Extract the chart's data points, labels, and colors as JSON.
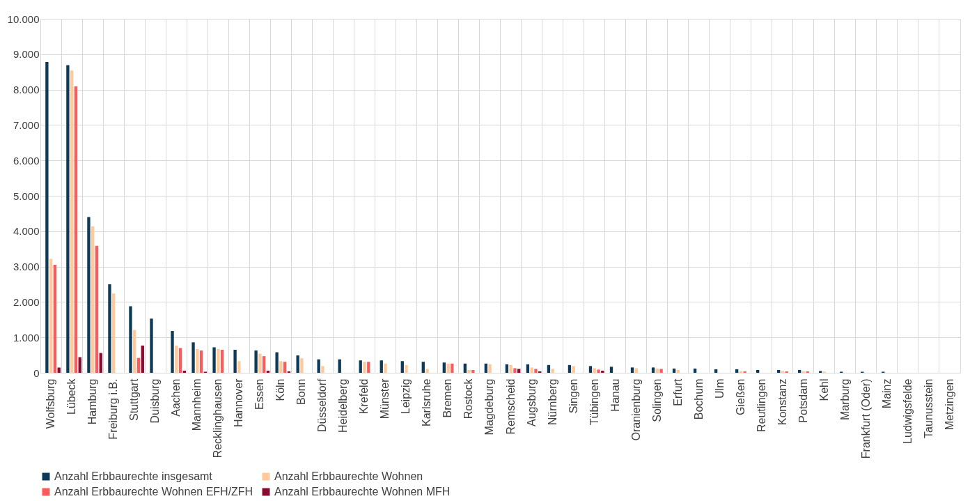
{
  "chart_data": {
    "type": "bar",
    "categories": [
      "Wolfsburg",
      "Lübeck",
      "Hamburg",
      "Freiburg i.B.",
      "Stuttgart",
      "Duisburg",
      "Aachen",
      "Mannheim",
      "Recklinghausen",
      "Hannover",
      "Essen",
      "Köln",
      "Bonn",
      "Düsseldorf",
      "Heidelberg",
      "Krefeld",
      "Münster",
      "Leipzig",
      "Karlsruhe",
      "Bremen",
      "Rostock",
      "Magdeburg",
      "Remscheid",
      "Augsburg",
      "Nürnberg",
      "Singen",
      "Tübingen",
      "Hanau",
      "Oranienburg",
      "Solingen",
      "Erfurt",
      "Bochum",
      "Ulm",
      "Gießen",
      "Reutlingen",
      "Konstanz",
      "Potsdam",
      "Kehl",
      "Marburg",
      "Frankfurt (Oder)",
      "Mainz",
      "Ludwigsfelde",
      "Taunusstein",
      "Metzingen"
    ],
    "series": [
      {
        "name": "Anzahl Erbbaurechte insgesamt",
        "color": "#0e3a5a",
        "values": [
          8780,
          8690,
          4400,
          2500,
          1880,
          1530,
          1180,
          860,
          720,
          650,
          630,
          580,
          490,
          380,
          380,
          350,
          350,
          330,
          310,
          290,
          260,
          260,
          240,
          240,
          220,
          220,
          190,
          170,
          150,
          150,
          120,
          120,
          100,
          100,
          80,
          80,
          80,
          50,
          30,
          30,
          30,
          null,
          null,
          null
        ]
      },
      {
        "name": "Anzahl Erbbaurechte Wohnen",
        "color": "#ffc99a",
        "values": [
          3220,
          8540,
          4140,
          2240,
          1210,
          null,
          770,
          670,
          670,
          330,
          540,
          330,
          410,
          190,
          null,
          310,
          260,
          220,
          110,
          260,
          80,
          240,
          220,
          150,
          110,
          190,
          130,
          null,
          130,
          120,
          80,
          null,
          null,
          50,
          null,
          50,
          40,
          30,
          null,
          null,
          null,
          null,
          null,
          null
        ]
      },
      {
        "name": "Anzahl Erbbaurechte Wohnen EFH/ZFH",
        "color": "#ff5a5a",
        "values": [
          3050,
          8090,
          3590,
          null,
          420,
          null,
          700,
          630,
          650,
          null,
          470,
          310,
          null,
          null,
          null,
          310,
          null,
          null,
          null,
          260,
          80,
          null,
          130,
          110,
          null,
          null,
          90,
          null,
          null,
          110,
          null,
          null,
          null,
          40,
          null,
          40,
          40,
          null,
          null,
          null,
          null,
          null,
          null,
          null
        ]
      },
      {
        "name": "Anzahl Erbbaurechte Wohnen MFH",
        "color": "#8b0a30",
        "values": [
          150,
          440,
          560,
          null,
          770,
          null,
          60,
          30,
          null,
          null,
          60,
          40,
          null,
          null,
          null,
          null,
          null,
          null,
          null,
          null,
          null,
          null,
          110,
          40,
          null,
          null,
          60,
          null,
          null,
          null,
          null,
          null,
          null,
          null,
          null,
          null,
          null,
          null,
          null,
          null,
          null,
          null,
          null,
          null
        ]
      }
    ],
    "ylim": [
      0,
      10000
    ],
    "yticks": [
      0,
      {
        "value": 1000,
        "label": "1.000"
      },
      {
        "value": 2000,
        "label": "2.000"
      },
      {
        "value": 3000,
        "label": "3.000"
      },
      {
        "value": 4000,
        "label": "4.000"
      },
      {
        "value": 5000,
        "label": "5.000"
      },
      {
        "value": 6000,
        "label": "6.000"
      },
      {
        "value": 7000,
        "label": "7.000"
      },
      {
        "value": 8000,
        "label": "8.000"
      },
      {
        "value": 9000,
        "label": "9.000"
      },
      {
        "value": 10000,
        "label": "10.000"
      }
    ],
    "grid": true,
    "legend": "bottom"
  }
}
